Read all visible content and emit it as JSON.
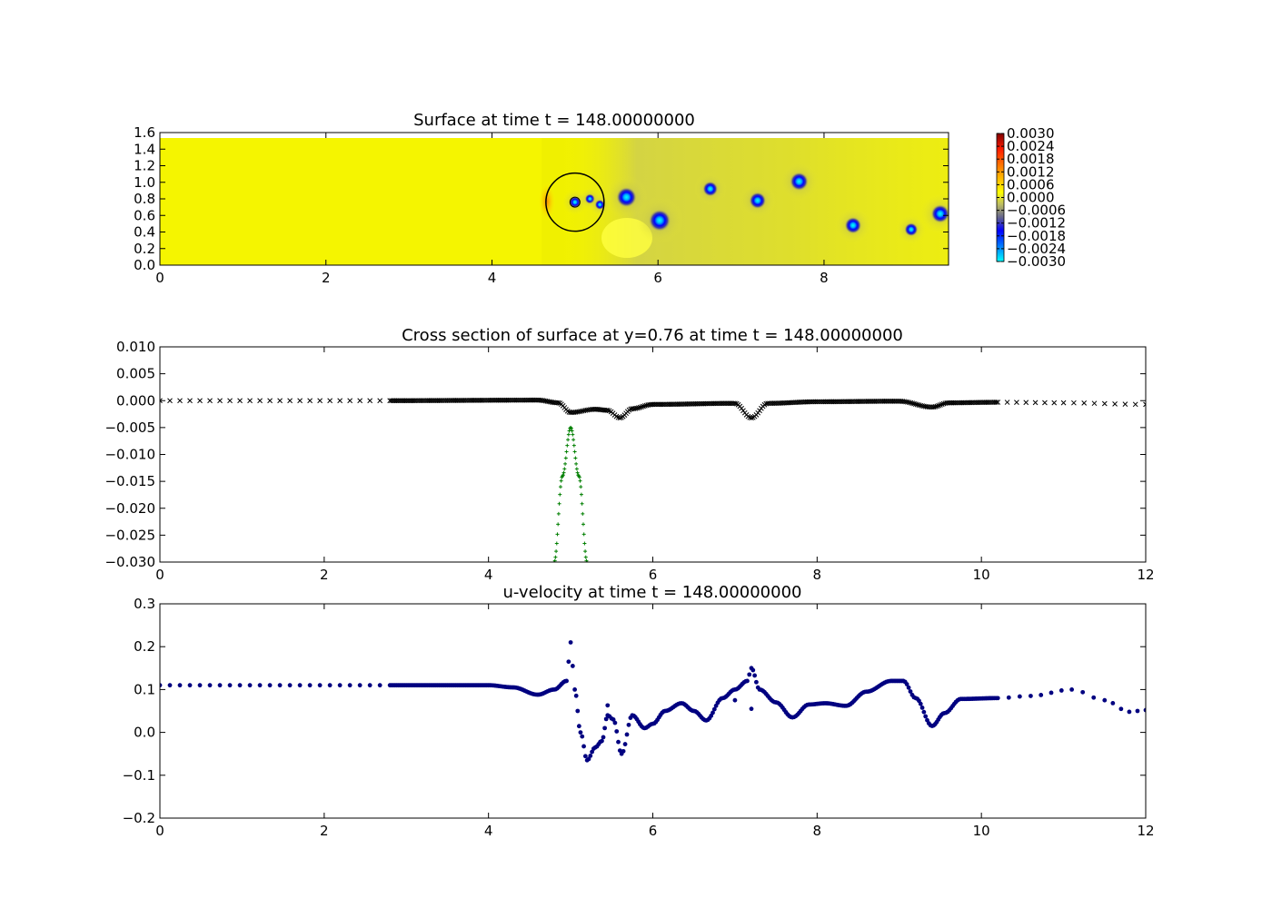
{
  "chart_data": [
    {
      "type": "heatmap",
      "title": "Surface at time t =   148.00000000",
      "xlim": [
        0,
        9.5
      ],
      "ylim": [
        0,
        1.6
      ],
      "x_ticks": [
        "0",
        "2",
        "4",
        "6",
        "8"
      ],
      "y_ticks": [
        "0.0",
        "0.2",
        "0.4",
        "0.6",
        "0.8",
        "1.0",
        "1.2",
        "1.4",
        "1.6"
      ],
      "domain": {
        "x": [
          0,
          9.5
        ],
        "y": [
          0,
          1.52
        ]
      },
      "colorbar": {
        "ticks": [
          "0.0030",
          "0.0024",
          "0.0018",
          "0.0012",
          "0.0006",
          "0.0000",
          "−0.0006",
          "−0.0012",
          "−0.0018",
          "−0.0024",
          "−0.0030"
        ],
        "range": [
          -0.003,
          0.003
        ]
      },
      "vortices": [
        {
          "x": 5.0,
          "y": 0.76,
          "size": 0.07
        },
        {
          "x": 5.18,
          "y": 0.8,
          "size": 0.06
        },
        {
          "x": 5.3,
          "y": 0.73,
          "size": 0.06
        },
        {
          "x": 5.62,
          "y": 0.82,
          "size": 0.12
        },
        {
          "x": 6.02,
          "y": 0.54,
          "size": 0.13
        },
        {
          "x": 6.63,
          "y": 0.92,
          "size": 0.09
        },
        {
          "x": 7.2,
          "y": 0.78,
          "size": 0.1
        },
        {
          "x": 7.7,
          "y": 1.01,
          "size": 0.11
        },
        {
          "x": 8.35,
          "y": 0.48,
          "size": 0.1
        },
        {
          "x": 9.05,
          "y": 0.43,
          "size": 0.08
        },
        {
          "x": 9.4,
          "y": 0.62,
          "size": 0.11
        }
      ],
      "circle": {
        "center": [
          5.0,
          0.76
        ],
        "radius": 0.35
      }
    },
    {
      "type": "scatter",
      "title": "Cross section of surface at y=0.76 at time t =   148.00000000",
      "xlim": [
        0,
        12
      ],
      "ylim": [
        -0.03,
        0.01
      ],
      "x_ticks": [
        "0",
        "2",
        "4",
        "6",
        "8",
        "10",
        "12"
      ],
      "y_ticks": [
        "0.010",
        "0.005",
        "0.000",
        "−0.005",
        "−0.010",
        "−0.015",
        "−0.020",
        "−0.025",
        "−0.030"
      ],
      "series": [
        {
          "marker": "x",
          "color": "#000000",
          "x": [
            0,
            2.8,
            4.6,
            4.85,
            5.0,
            5.3,
            5.45,
            5.6,
            5.75,
            6.0,
            7.0,
            7.2,
            7.4,
            8.0,
            9.0,
            9.4,
            9.6,
            10.2,
            11.0,
            12.0
          ],
          "y": [
            0.0,
            0.0,
            0.0001,
            -0.0004,
            -0.0022,
            -0.0016,
            -0.0018,
            -0.0032,
            -0.0015,
            -0.0007,
            -0.0005,
            -0.0032,
            -0.0005,
            -0.0002,
            -0.0001,
            -0.0012,
            -0.0004,
            -0.0003,
            -0.0004,
            -0.0007
          ]
        },
        {
          "marker": "+",
          "color": "#007f00",
          "x": [
            4.8,
            4.9,
            5.0,
            5.1,
            5.2
          ],
          "y": [
            -0.03,
            -0.014,
            -0.005,
            -0.014,
            -0.03
          ]
        }
      ]
    },
    {
      "type": "scatter",
      "title": "u-velocity at time t =   148.00000000",
      "xlim": [
        0,
        12
      ],
      "ylim": [
        -0.2,
        0.3
      ],
      "x_ticks": [
        "0",
        "2",
        "4",
        "6",
        "8",
        "10",
        "12"
      ],
      "y_ticks": [
        "0.3",
        "0.2",
        "0.1",
        "0.0",
        "−0.1",
        "−0.2"
      ],
      "series": [
        {
          "marker": "o",
          "color": "#000080",
          "x": [
            0,
            2.8,
            4.0,
            4.3,
            4.6,
            4.8,
            4.95,
            5.0,
            5.05,
            5.12,
            5.2,
            5.3,
            5.38,
            5.45,
            5.52,
            5.62,
            5.75,
            5.9,
            6.0,
            6.15,
            6.35,
            6.5,
            6.65,
            6.85,
            7.0,
            7.15,
            7.2,
            7.3,
            7.5,
            7.7,
            7.9,
            8.1,
            8.35,
            8.6,
            8.9,
            9.05,
            9.2,
            9.4,
            9.55,
            9.75,
            10.2,
            10.6,
            11.1,
            11.5,
            11.8,
            12.0
          ],
          "y": [
            0.11,
            0.11,
            0.11,
            0.105,
            0.088,
            0.1,
            0.12,
            0.21,
            0.1,
            0.0,
            -0.065,
            -0.035,
            -0.02,
            0.04,
            0.03,
            -0.05,
            0.04,
            0.01,
            0.02,
            0.05,
            0.068,
            0.05,
            0.028,
            0.08,
            0.1,
            0.12,
            0.15,
            0.1,
            0.07,
            0.035,
            0.065,
            0.068,
            0.062,
            0.095,
            0.12,
            0.12,
            0.08,
            0.015,
            0.045,
            0.078,
            0.08,
            0.085,
            0.1,
            0.075,
            0.048,
            0.052
          ]
        },
        {
          "marker": "o",
          "color": "#000080",
          "x": [
            5.45,
            7.0,
            7.2
          ],
          "y": [
            0.063,
            0.075,
            0.055
          ]
        }
      ]
    }
  ]
}
